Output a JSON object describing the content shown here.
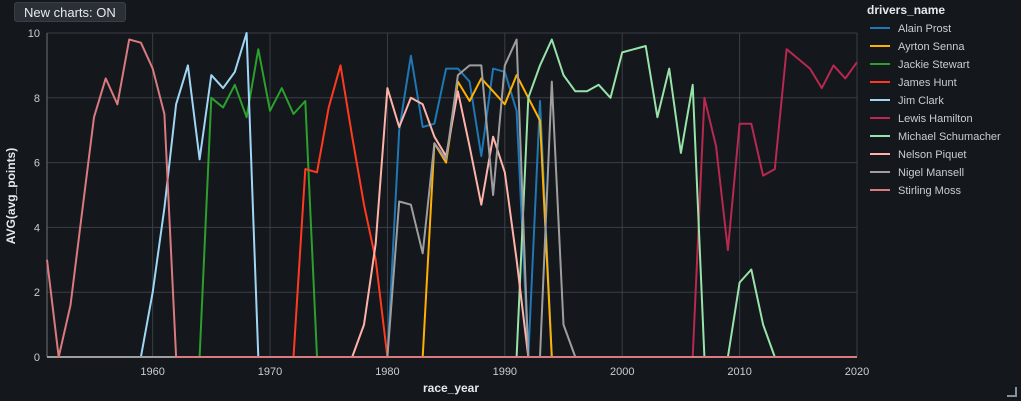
{
  "toolbar": {
    "new_charts_label": "New charts: ON"
  },
  "chart_data": {
    "type": "line",
    "xlabel": "race_year",
    "ylabel": "AVG(avg_points)",
    "xlim": [
      1951,
      2020
    ],
    "ylim": [
      0,
      10
    ],
    "x_ticks": [
      1960,
      1970,
      1980,
      1990,
      2000,
      2010,
      2020
    ],
    "y_ticks": [
      0,
      2,
      4,
      6,
      8,
      10
    ],
    "grid": true,
    "legend_title": "drivers_name",
    "legend_position": "right",
    "series": [
      {
        "name": "Alain Prost",
        "color": "#1f77b4",
        "points": [
          [
            1951,
            0
          ],
          [
            1979,
            0
          ],
          [
            1980,
            0
          ],
          [
            1981,
            7.0
          ],
          [
            1982,
            9.3
          ],
          [
            1983,
            7.1
          ],
          [
            1984,
            7.2
          ],
          [
            1985,
            8.9
          ],
          [
            1986,
            8.9
          ],
          [
            1987,
            8.5
          ],
          [
            1988,
            6.2
          ],
          [
            1989,
            8.9
          ],
          [
            1990,
            8.8
          ],
          [
            1991,
            7.6
          ],
          [
            1992,
            0
          ],
          [
            1993,
            7.9
          ],
          [
            1994,
            0
          ],
          [
            2020,
            0
          ]
        ]
      },
      {
        "name": "Ayrton Senna",
        "color": "#ffb000",
        "points": [
          [
            1951,
            0
          ],
          [
            1983,
            0
          ],
          [
            1984,
            6.6
          ],
          [
            1985,
            6.0
          ],
          [
            1986,
            8.5
          ],
          [
            1987,
            7.9
          ],
          [
            1988,
            8.6
          ],
          [
            1989,
            8.2
          ],
          [
            1990,
            7.8
          ],
          [
            1991,
            8.7
          ],
          [
            1992,
            8.0
          ],
          [
            1993,
            7.3
          ],
          [
            1994,
            0
          ],
          [
            2020,
            0
          ]
        ]
      },
      {
        "name": "Jackie Stewart",
        "color": "#2ca02c",
        "points": [
          [
            1951,
            0
          ],
          [
            1964,
            0
          ],
          [
            1965,
            8.0
          ],
          [
            1966,
            7.7
          ],
          [
            1967,
            8.4
          ],
          [
            1968,
            7.4
          ],
          [
            1969,
            9.5
          ],
          [
            1970,
            7.6
          ],
          [
            1971,
            8.3
          ],
          [
            1972,
            7.5
          ],
          [
            1973,
            7.9
          ],
          [
            1974,
            0
          ],
          [
            2020,
            0
          ]
        ]
      },
      {
        "name": "James Hunt",
        "color": "#ff3b1f",
        "points": [
          [
            1951,
            0
          ],
          [
            1972,
            0
          ],
          [
            1973,
            5.8
          ],
          [
            1974,
            5.7
          ],
          [
            1975,
            7.7
          ],
          [
            1976,
            9.0
          ],
          [
            1977,
            6.8
          ],
          [
            1978,
            4.7
          ],
          [
            1979,
            3.0
          ],
          [
            1980,
            0
          ],
          [
            2020,
            0
          ]
        ]
      },
      {
        "name": "Jim Clark",
        "color": "#9fd6f5",
        "points": [
          [
            1951,
            0
          ],
          [
            1959,
            0
          ],
          [
            1960,
            2.0
          ],
          [
            1961,
            4.6
          ],
          [
            1962,
            7.8
          ],
          [
            1963,
            9.0
          ],
          [
            1964,
            6.1
          ],
          [
            1965,
            8.7
          ],
          [
            1966,
            8.3
          ],
          [
            1967,
            8.8
          ],
          [
            1968,
            10.0
          ],
          [
            1969,
            0
          ],
          [
            2020,
            0
          ]
        ]
      },
      {
        "name": "Lewis Hamilton",
        "color": "#b8284f",
        "points": [
          [
            1951,
            0
          ],
          [
            2006,
            0
          ],
          [
            2007,
            8.0
          ],
          [
            2008,
            6.5
          ],
          [
            2009,
            3.3
          ],
          [
            2010,
            7.2
          ],
          [
            2011,
            7.2
          ],
          [
            2012,
            5.6
          ],
          [
            2013,
            5.8
          ],
          [
            2014,
            9.5
          ],
          [
            2015,
            9.2
          ],
          [
            2016,
            8.9
          ],
          [
            2017,
            8.3
          ],
          [
            2018,
            9.0
          ],
          [
            2019,
            8.6
          ],
          [
            2020,
            9.1
          ]
        ]
      },
      {
        "name": "Michael Schumacher",
        "color": "#98e3a8",
        "points": [
          [
            1951,
            0
          ],
          [
            1991,
            0
          ],
          [
            1992,
            8.0
          ],
          [
            1993,
            9.0
          ],
          [
            1994,
            9.8
          ],
          [
            1995,
            8.7
          ],
          [
            1996,
            8.2
          ],
          [
            1997,
            8.2
          ],
          [
            1998,
            8.4
          ],
          [
            1999,
            8.0
          ],
          [
            2000,
            9.4
          ],
          [
            2001,
            9.5
          ],
          [
            2002,
            9.6
          ],
          [
            2003,
            7.4
          ],
          [
            2004,
            8.9
          ],
          [
            2005,
            6.3
          ],
          [
            2006,
            8.4
          ],
          [
            2007,
            0
          ],
          [
            2009,
            0
          ],
          [
            2010,
            2.3
          ],
          [
            2011,
            2.7
          ],
          [
            2012,
            1.0
          ],
          [
            2013,
            0
          ],
          [
            2020,
            0
          ]
        ]
      },
      {
        "name": "Nelson Piquet",
        "color": "#ffb3a8",
        "points": [
          [
            1951,
            0
          ],
          [
            1977,
            0
          ],
          [
            1978,
            1.0
          ],
          [
            1979,
            3.5
          ],
          [
            1980,
            8.3
          ],
          [
            1981,
            7.1
          ],
          [
            1982,
            8.0
          ],
          [
            1983,
            7.8
          ],
          [
            1984,
            6.8
          ],
          [
            1985,
            6.2
          ],
          [
            1986,
            8.2
          ],
          [
            1987,
            6.5
          ],
          [
            1988,
            4.7
          ],
          [
            1989,
            6.8
          ],
          [
            1990,
            5.7
          ],
          [
            1991,
            3.0
          ],
          [
            1992,
            0
          ],
          [
            2020,
            0
          ]
        ]
      },
      {
        "name": "Nigel Mansell",
        "color": "#9e9e9e",
        "points": [
          [
            1951,
            0
          ],
          [
            1980,
            0
          ],
          [
            1981,
            4.8
          ],
          [
            1982,
            4.7
          ],
          [
            1983,
            3.2
          ],
          [
            1984,
            6.6
          ],
          [
            1985,
            6.1
          ],
          [
            1986,
            8.7
          ],
          [
            1987,
            9.0
          ],
          [
            1988,
            9.0
          ],
          [
            1989,
            5.0
          ],
          [
            1990,
            9.0
          ],
          [
            1991,
            9.8
          ],
          [
            1992,
            0
          ],
          [
            1993,
            0
          ],
          [
            1994,
            8.5
          ],
          [
            1995,
            1.0
          ],
          [
            1996,
            0
          ],
          [
            2020,
            0
          ]
        ]
      },
      {
        "name": "Stirling Moss",
        "color": "#d97a7f",
        "points": [
          [
            1951,
            3.0
          ],
          [
            1952,
            0
          ],
          [
            1953,
            1.6
          ],
          [
            1954,
            4.5
          ],
          [
            1955,
            7.4
          ],
          [
            1956,
            8.6
          ],
          [
            1957,
            7.8
          ],
          [
            1958,
            9.8
          ],
          [
            1959,
            9.7
          ],
          [
            1960,
            8.9
          ],
          [
            1961,
            7.5
          ],
          [
            1962,
            0
          ],
          [
            2020,
            0
          ]
        ]
      }
    ]
  }
}
